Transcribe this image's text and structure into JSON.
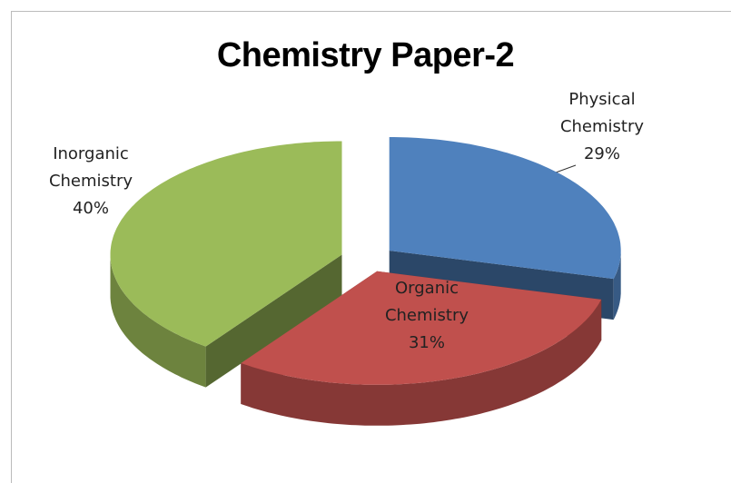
{
  "chart_data": {
    "type": "pie",
    "title": "Chemistry Paper-2",
    "categories": [
      "Physical Chemistry",
      "Organic Chemistry",
      "Inorganic Chemistry"
    ],
    "values": [
      29,
      31,
      40
    ],
    "value_labels": [
      "29%",
      "31%",
      "40%"
    ],
    "colors": [
      "#4f81bd",
      "#c0504d",
      "#9bbb59"
    ]
  }
}
